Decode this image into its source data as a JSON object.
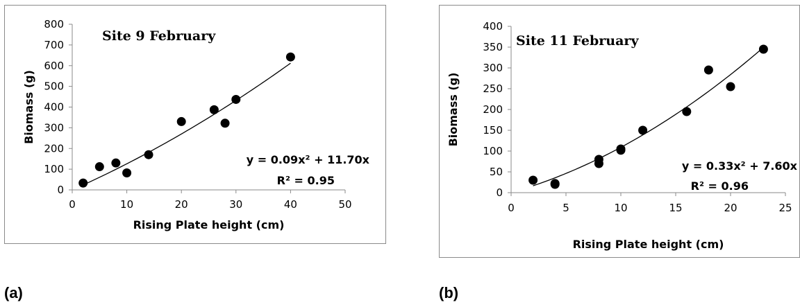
{
  "chart_data": [
    {
      "type": "scatter",
      "panel_label": "(a)",
      "title": "Site 9 February",
      "xlabel": "Rising Plate height (cm)",
      "ylabel": "Biomass  (g)",
      "xlim": [
        0,
        50
      ],
      "ylim": [
        0,
        800
      ],
      "xticks": [
        0,
        10,
        20,
        30,
        40,
        50
      ],
      "yticks": [
        0,
        100,
        200,
        300,
        400,
        500,
        600,
        700,
        800
      ],
      "grid": false,
      "points": [
        {
          "x": 2,
          "y": 33
        },
        {
          "x": 5,
          "y": 112
        },
        {
          "x": 8,
          "y": 130
        },
        {
          "x": 10,
          "y": 82
        },
        {
          "x": 14,
          "y": 170
        },
        {
          "x": 20,
          "y": 330
        },
        {
          "x": 26,
          "y": 387
        },
        {
          "x": 28,
          "y": 322
        },
        {
          "x": 30,
          "y": 437
        },
        {
          "x": 40,
          "y": 642
        }
      ],
      "trendline": {
        "type": "polynomial",
        "a": 0.09,
        "b": 11.7,
        "x_range": [
          2,
          40
        ]
      },
      "equation": "y = 0.09x² + 11.70x",
      "r_squared": "R² = 0.95",
      "color": "#000000"
    },
    {
      "type": "scatter",
      "panel_label": "(b)",
      "title": "Site 11 February",
      "xlabel": "Rising Plate height (cm)",
      "ylabel": "Biomass  (g)",
      "xlim": [
        0,
        25
      ],
      "ylim": [
        0,
        400
      ],
      "xticks": [
        0,
        5,
        10,
        15,
        20,
        25
      ],
      "yticks": [
        0,
        50,
        100,
        150,
        200,
        250,
        300,
        350,
        400
      ],
      "grid": false,
      "points": [
        {
          "x": 2,
          "y": 30
        },
        {
          "x": 4,
          "y": 20
        },
        {
          "x": 4,
          "y": 22
        },
        {
          "x": 8,
          "y": 70
        },
        {
          "x": 8,
          "y": 80
        },
        {
          "x": 10,
          "y": 102
        },
        {
          "x": 10,
          "y": 105
        },
        {
          "x": 12,
          "y": 150
        },
        {
          "x": 16,
          "y": 195
        },
        {
          "x": 18,
          "y": 295
        },
        {
          "x": 20,
          "y": 255
        },
        {
          "x": 23,
          "y": 345
        }
      ],
      "trendline": {
        "type": "polynomial",
        "a": 0.33,
        "b": 7.6,
        "x_range": [
          2,
          23
        ]
      },
      "equation": "y = 0.33x² + 7.60x",
      "r_squared": "R² = 0.96",
      "color": "#000000"
    }
  ]
}
